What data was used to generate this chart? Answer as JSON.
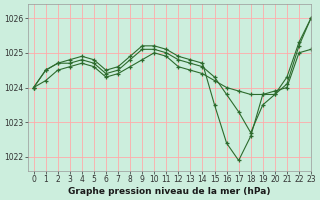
{
  "title": "Graphe pression niveau de la mer (hPa)",
  "background_color": "#cceedd",
  "grid_color": "#ffaaaa",
  "line_color": "#2d6b2d",
  "xlim": [
    -0.5,
    23
  ],
  "ylim": [
    1021.6,
    1026.4
  ],
  "yticks": [
    1022,
    1023,
    1024,
    1025,
    1026
  ],
  "xticks": [
    0,
    1,
    2,
    3,
    4,
    5,
    6,
    7,
    8,
    9,
    10,
    11,
    12,
    13,
    14,
    15,
    16,
    17,
    18,
    19,
    20,
    21,
    22,
    23
  ],
  "series": [
    [
      1024.0,
      1024.2,
      1024.5,
      1024.6,
      1024.7,
      1024.6,
      1024.3,
      1024.4,
      1024.6,
      1024.8,
      1025.0,
      1024.9,
      1024.6,
      1024.5,
      1024.4,
      1024.2,
      1024.0,
      1023.9,
      1023.8,
      1023.8,
      1023.9,
      1024.0,
      1025.0,
      1025.1
    ],
    [
      1024.0,
      1024.5,
      1024.7,
      1024.7,
      1024.8,
      1024.7,
      1024.4,
      1024.5,
      1024.8,
      1025.1,
      1025.1,
      1025.0,
      1024.8,
      1024.7,
      1024.6,
      1024.3,
      1023.8,
      1023.3,
      1022.7,
      1023.5,
      1023.8,
      1024.3,
      1025.3,
      1026.0
    ],
    [
      1024.0,
      1024.5,
      1024.7,
      1024.8,
      1024.9,
      1024.8,
      1024.5,
      1024.6,
      1024.9,
      1025.2,
      1025.2,
      1025.1,
      1024.9,
      1024.8,
      1024.7,
      1023.5,
      1022.4,
      1021.9,
      1022.6,
      1023.8,
      1023.8,
      1024.1,
      1025.2,
      1026.0
    ]
  ]
}
